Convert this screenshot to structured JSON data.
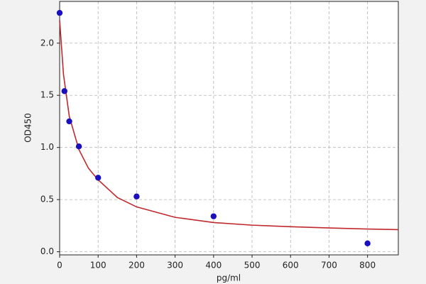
{
  "chart_data": {
    "type": "scatter",
    "xlabel": "pg/ml",
    "ylabel": "OD450",
    "xlim": [
      0,
      880
    ],
    "ylim": [
      -0.03,
      2.4
    ],
    "xticks": [
      0,
      100,
      200,
      300,
      400,
      500,
      600,
      700,
      800
    ],
    "yticks": [
      {
        "value": 0,
        "label": "0.0"
      },
      0.5,
      {
        "value": 1,
        "label": "1.0"
      },
      1.5,
      {
        "value": 2,
        "label": "2.0"
      }
    ],
    "grid": true,
    "series": [
      {
        "type": "line",
        "color": "#c0282d",
        "x": [
          0,
          10,
          25,
          50,
          75,
          100,
          150,
          200,
          300,
          400,
          500,
          600,
          700,
          800,
          880
        ],
        "values": [
          2.22,
          1.7,
          1.3,
          0.98,
          0.8,
          0.69,
          0.52,
          0.43,
          0.33,
          0.28,
          0.255,
          0.24,
          0.228,
          0.218,
          0.212
        ]
      },
      {
        "type": "scatter",
        "color": "#1a0fbf",
        "x": [
          0,
          12.5,
          25,
          50,
          100,
          200,
          400,
          800
        ],
        "values": [
          2.29,
          1.54,
          1.25,
          1.01,
          0.71,
          0.53,
          0.34,
          0.08
        ]
      }
    ]
  }
}
